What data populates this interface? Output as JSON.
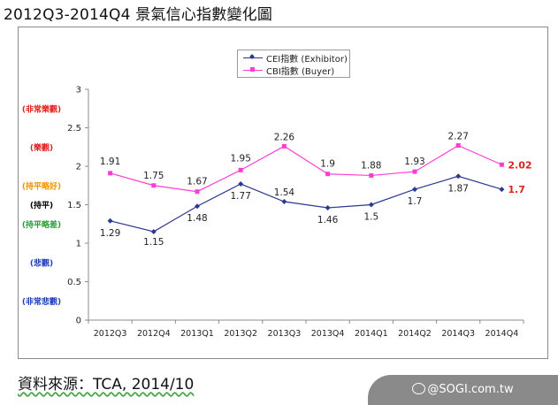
{
  "page": {
    "title": "2012Q3-2014Q4 景氣信心指數變化圖",
    "source_text": "資料來源：TCA, 2014/10",
    "watermark": "@SOGI.com.tw"
  },
  "colors": {
    "cei_series": "#2b3990",
    "cbi_series": "#ff3bd6",
    "emphasis_label": "#e02020",
    "category_red": "#e02020",
    "category_orange": "#f39200",
    "category_green": "#2e9b3b",
    "category_blue": "#1f3fbf",
    "category_black": "#000000"
  },
  "chart_data": {
    "type": "line",
    "categories": [
      "2012Q3",
      "2012Q4",
      "2013Q1",
      "2013Q2",
      "2013Q3",
      "2013Q4",
      "2014Q1",
      "2014Q2",
      "2014Q3",
      "2014Q4"
    ],
    "series": [
      {
        "name": "CEI指數 (Exhibitor)",
        "marker": "diamond",
        "color": "#2b3990",
        "values": [
          1.29,
          1.15,
          1.48,
          1.77,
          1.54,
          1.46,
          1.5,
          1.7,
          1.87,
          1.7
        ],
        "labels": [
          "1.29",
          "1.15",
          "1.48",
          "1.77",
          "1.54",
          "1.46",
          "1.5",
          "1.7",
          "1.87",
          "1.7"
        ]
      },
      {
        "name": "CBI指數 (Buyer)",
        "marker": "square",
        "color": "#ff3bd6",
        "values": [
          1.91,
          1.75,
          1.67,
          1.95,
          2.26,
          1.9,
          1.88,
          1.93,
          2.27,
          2.02
        ],
        "labels": [
          "1.91",
          "1.75",
          "1.67",
          "1.95",
          "2.26",
          "1.9",
          "1.88",
          "1.93",
          "2.27",
          "2.02"
        ]
      }
    ],
    "ylim": [
      0,
      3
    ],
    "yticks": [
      "0",
      "0.5",
      "1",
      "1.5",
      "2",
      "2.5",
      "3"
    ],
    "y_category_labels": [
      {
        "y": 2.75,
        "text": "(非常樂觀)",
        "color": "#e02020"
      },
      {
        "y": 2.25,
        "text": "(樂觀)",
        "color": "#e02020"
      },
      {
        "y": 1.75,
        "text": "(持平略好)",
        "color": "#f39200"
      },
      {
        "y": 1.5,
        "text": "(持平)",
        "color": "#000000"
      },
      {
        "y": 1.25,
        "text": "(持平略差)",
        "color": "#2e9b3b"
      },
      {
        "y": 0.75,
        "text": "(悲觀)",
        "color": "#1f3fbf"
      },
      {
        "y": 0.25,
        "text": "(非常悲觀)",
        "color": "#1f3fbf"
      }
    ],
    "grid": false,
    "legend_position": "top-center",
    "emphasized_last_labels": true
  }
}
